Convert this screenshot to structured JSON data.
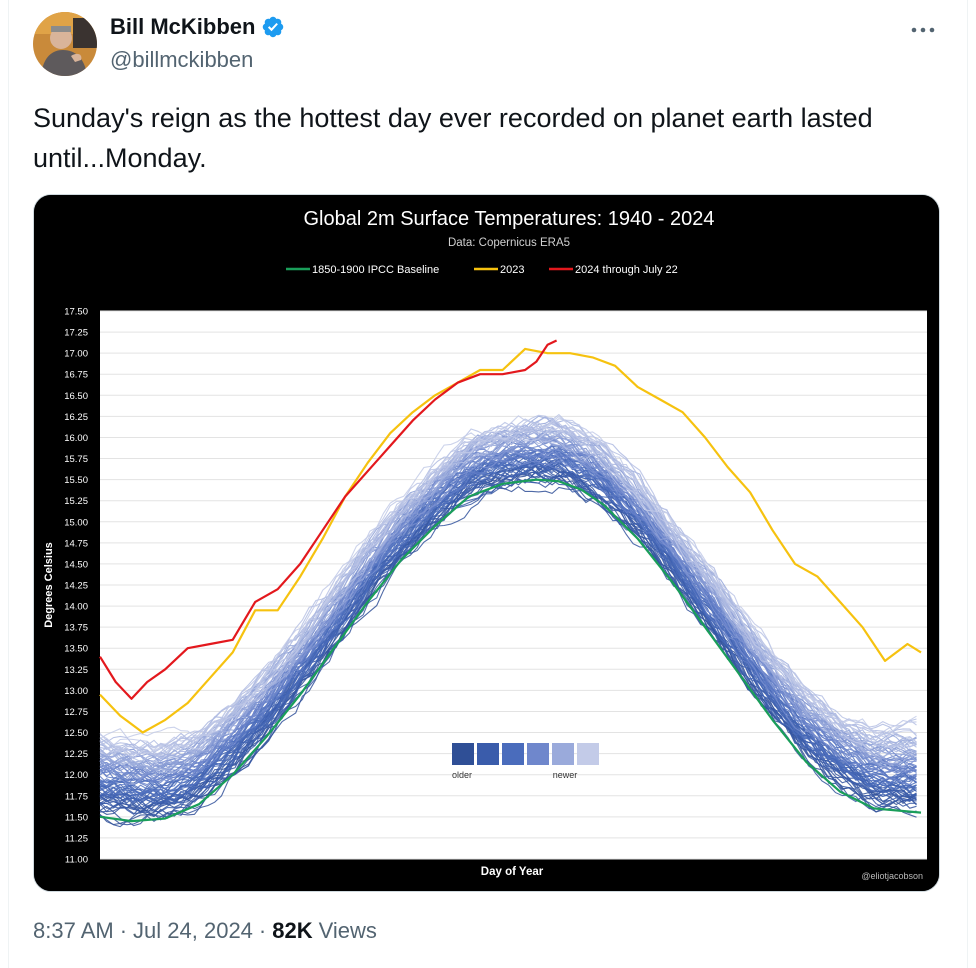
{
  "author": {
    "name": "Bill McKibben",
    "handle": "@billmckibben"
  },
  "tweet": {
    "text": "Sunday's reign as the hottest day ever recorded on planet earth lasted until...Monday."
  },
  "meta": {
    "time": "8:37 AM",
    "date": "Jul 24, 2024",
    "separator": "·",
    "views_count": "82K",
    "views_label": "Views"
  },
  "colors": {
    "verified": "#1d9bf0",
    "baseline": "#1a9e5a",
    "year2023": "#f6c20f",
    "year2024": "#e3181d"
  },
  "chart_data": {
    "type": "line",
    "title": "Global 2m Surface Temperatures: 1940 - 2024",
    "subtitle": "Data: Copernicus ERA5",
    "xlabel": "Day of Year",
    "ylabel": "Degrees Celsius",
    "credit": "@eliotjacobson",
    "ylim": [
      11.0,
      17.5
    ],
    "xlim": [
      1,
      366
    ],
    "yticks": [
      "11.00",
      "11.25",
      "11.50",
      "11.75",
      "12.00",
      "12.25",
      "12.50",
      "12.75",
      "13.00",
      "13.25",
      "13.50",
      "13.75",
      "14.00",
      "14.25",
      "14.50",
      "14.75",
      "15.00",
      "15.25",
      "15.50",
      "15.75",
      "16.00",
      "16.25",
      "16.50",
      "16.75",
      "17.00",
      "17.25",
      "17.50"
    ],
    "legend": {
      "placement": "top",
      "items": [
        "1850-1900 IPCC Baseline",
        "2023",
        "2024 through July 22"
      ]
    },
    "gradient_legend": {
      "left_label": "older",
      "right_label": "newer",
      "swatches": [
        "#2f4f96",
        "#3a5cab",
        "#4a6cbc",
        "#6f87cc",
        "#9aaadb",
        "#c3cbe8"
      ]
    },
    "series": [
      {
        "name": "1850-1900 IPCC Baseline",
        "x": [
          1,
          15,
          30,
          45,
          60,
          75,
          90,
          105,
          120,
          135,
          150,
          165,
          180,
          195,
          205,
          215,
          225,
          240,
          255,
          270,
          285,
          300,
          315,
          330,
          345,
          366
        ],
        "values": [
          11.5,
          11.45,
          11.48,
          11.65,
          12.0,
          12.45,
          12.95,
          13.5,
          14.05,
          14.55,
          14.95,
          15.3,
          15.45,
          15.5,
          15.48,
          15.38,
          15.2,
          14.8,
          14.3,
          13.75,
          13.2,
          12.65,
          12.15,
          11.8,
          11.6,
          11.55
        ]
      },
      {
        "name": "2023",
        "x": [
          1,
          10,
          20,
          30,
          40,
          50,
          60,
          70,
          80,
          90,
          100,
          110,
          120,
          130,
          140,
          150,
          160,
          170,
          180,
          190,
          200,
          210,
          220,
          230,
          240,
          250,
          260,
          270,
          280,
          290,
          300,
          310,
          320,
          330,
          340,
          350,
          360,
          366
        ],
        "values": [
          12.95,
          12.7,
          12.5,
          12.65,
          12.85,
          13.15,
          13.45,
          13.95,
          13.95,
          14.35,
          14.8,
          15.3,
          15.7,
          16.05,
          16.3,
          16.5,
          16.65,
          16.8,
          16.8,
          17.05,
          17.0,
          17.0,
          16.95,
          16.85,
          16.6,
          16.45,
          16.3,
          16.0,
          15.65,
          15.35,
          14.9,
          14.5,
          14.35,
          14.05,
          13.75,
          13.35,
          13.55,
          13.45
        ]
      },
      {
        "name": "2024 through July 22",
        "x": [
          1,
          8,
          15,
          22,
          30,
          40,
          50,
          60,
          70,
          80,
          90,
          100,
          110,
          120,
          130,
          140,
          150,
          160,
          170,
          180,
          190,
          195,
          200,
          204
        ],
        "values": [
          13.4,
          13.1,
          12.9,
          13.1,
          13.25,
          13.5,
          13.55,
          13.6,
          14.05,
          14.2,
          14.5,
          14.9,
          15.3,
          15.6,
          15.9,
          16.2,
          16.45,
          16.65,
          16.75,
          16.75,
          16.8,
          16.9,
          17.1,
          17.15
        ]
      }
    ],
    "historical_band": {
      "note": "85 daily series for 1940-2022, colored older (dark blue) to newer (light blue)",
      "year_count": 85
    }
  }
}
